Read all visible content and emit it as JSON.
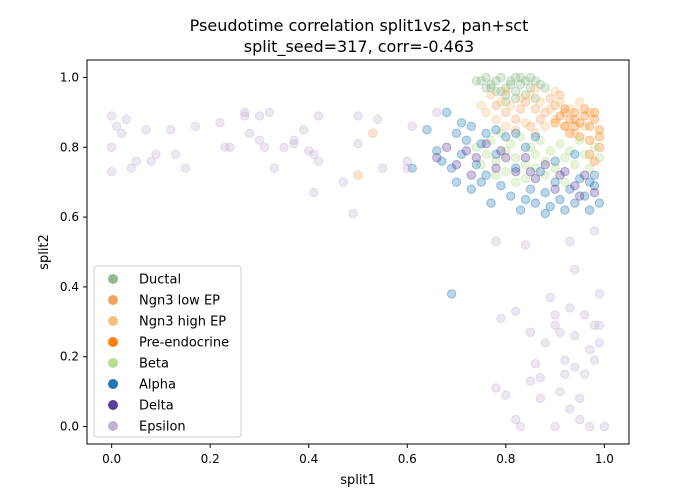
{
  "chart_data": {
    "type": "scatter",
    "title": "Pseudotime correlation split1vs2, pan+sct",
    "subtitle": "split_seed=317, corr=-0.463",
    "xlabel": "split1",
    "ylabel": "split2",
    "xlim": [
      -0.05,
      1.05
    ],
    "ylim": [
      -0.05,
      1.05
    ],
    "xticks": [
      0.0,
      0.2,
      0.4,
      0.6,
      0.8,
      1.0
    ],
    "yticks": [
      0.0,
      0.2,
      0.4,
      0.6,
      0.8,
      1.0
    ],
    "xtick_labels": [
      "0.0",
      "0.2",
      "0.4",
      "0.6",
      "0.8",
      "1.0"
    ],
    "ytick_labels": [
      "0.0",
      "0.2",
      "0.4",
      "0.6",
      "0.8",
      "1.0"
    ],
    "legend_position": "lower-left",
    "marker_alpha": 0.3,
    "series": [
      {
        "name": "Ductal",
        "color": "#8fbc8f",
        "points": [
          [
            0.75,
            0.99
          ],
          [
            0.76,
            1.0
          ],
          [
            0.77,
            0.98
          ],
          [
            0.78,
            0.99
          ],
          [
            0.79,
            1.0
          ],
          [
            0.8,
            0.97
          ],
          [
            0.81,
            0.99
          ],
          [
            0.82,
            1.0
          ],
          [
            0.83,
            0.98
          ],
          [
            0.84,
            0.99
          ],
          [
            0.85,
            0.97
          ],
          [
            0.86,
            0.99
          ],
          [
            0.87,
            0.98
          ],
          [
            0.78,
            0.96
          ],
          [
            0.8,
            0.95
          ],
          [
            0.82,
            0.96
          ],
          [
            0.84,
            0.95
          ],
          [
            0.77,
            0.97
          ],
          [
            0.79,
            0.96
          ],
          [
            0.81,
            0.98
          ],
          [
            0.83,
            1.0
          ],
          [
            0.85,
            1.0
          ],
          [
            0.76,
            0.97
          ],
          [
            0.88,
            0.97
          ],
          [
            0.74,
            0.99
          ],
          [
            0.86,
            0.94
          ],
          [
            0.8,
            0.93
          ],
          [
            0.82,
            0.94
          ]
        ]
      },
      {
        "name": "Ngn3 low EP",
        "color": "#f4a261",
        "points": [
          [
            0.53,
            0.84
          ],
          [
            0.5,
            0.72
          ],
          [
            0.84,
            0.93
          ],
          [
            0.86,
            0.91
          ],
          [
            0.88,
            0.9
          ],
          [
            0.9,
            0.92
          ],
          [
            0.87,
            0.88
          ],
          [
            0.85,
            0.86
          ],
          [
            0.89,
            0.94
          ],
          [
            0.91,
            0.95
          ],
          [
            0.83,
            0.91
          ],
          [
            0.92,
            0.9
          ],
          [
            0.94,
            0.88
          ],
          [
            0.8,
            0.9
          ],
          [
            0.78,
            0.92
          ],
          [
            0.82,
            0.88
          ]
        ]
      },
      {
        "name": "Ngn3 high EP",
        "color": "#f7c07a",
        "points": [
          [
            0.77,
            0.95
          ],
          [
            0.79,
            0.93
          ],
          [
            0.81,
            0.92
          ],
          [
            0.83,
            0.94
          ],
          [
            0.85,
            0.95
          ],
          [
            0.87,
            0.93
          ],
          [
            0.89,
            0.91
          ],
          [
            0.91,
            0.93
          ],
          [
            0.93,
            0.91
          ],
          [
            0.76,
            0.9
          ],
          [
            0.78,
            0.88
          ],
          [
            0.8,
            0.86
          ],
          [
            0.82,
            0.85
          ],
          [
            0.84,
            0.87
          ],
          [
            0.86,
            0.84
          ],
          [
            0.88,
            0.86
          ],
          [
            0.9,
            0.88
          ],
          [
            0.92,
            0.86
          ],
          [
            0.94,
            0.84
          ],
          [
            0.96,
            0.86
          ],
          [
            0.75,
            0.92
          ],
          [
            0.97,
            0.9
          ],
          [
            0.95,
            0.93
          ],
          [
            0.8,
            0.96
          ],
          [
            0.86,
            0.97
          ],
          [
            0.9,
            0.96
          ]
        ]
      },
      {
        "name": "Pre-endocrine",
        "color": "#ff7f0e",
        "points": [
          [
            0.9,
            0.87
          ],
          [
            0.91,
            0.89
          ],
          [
            0.92,
            0.86
          ],
          [
            0.93,
            0.88
          ],
          [
            0.94,
            0.9
          ],
          [
            0.95,
            0.87
          ],
          [
            0.96,
            0.89
          ],
          [
            0.97,
            0.86
          ],
          [
            0.98,
            0.88
          ],
          [
            0.99,
            0.85
          ],
          [
            0.93,
            0.84
          ],
          [
            0.95,
            0.83
          ],
          [
            0.97,
            0.82
          ],
          [
            0.99,
            0.8
          ],
          [
            0.96,
            0.91
          ],
          [
            0.98,
            0.9
          ],
          [
            0.92,
            0.91
          ],
          [
            0.94,
            0.86
          ],
          [
            0.99,
            0.83
          ],
          [
            0.97,
            0.78
          ],
          [
            0.98,
            0.76
          ]
        ]
      },
      {
        "name": "Beta",
        "color": "#b2df8a",
        "points": [
          [
            0.74,
            0.8
          ],
          [
            0.76,
            0.78
          ],
          [
            0.78,
            0.76
          ],
          [
            0.8,
            0.79
          ],
          [
            0.82,
            0.77
          ],
          [
            0.84,
            0.75
          ],
          [
            0.86,
            0.78
          ],
          [
            0.88,
            0.76
          ],
          [
            0.9,
            0.74
          ],
          [
            0.92,
            0.77
          ],
          [
            0.94,
            0.75
          ],
          [
            0.96,
            0.78
          ],
          [
            0.98,
            0.8
          ],
          [
            0.77,
            0.82
          ],
          [
            0.79,
            0.84
          ],
          [
            0.81,
            0.81
          ],
          [
            0.83,
            0.83
          ],
          [
            0.85,
            0.8
          ],
          [
            0.87,
            0.82
          ],
          [
            0.89,
            0.79
          ],
          [
            0.91,
            0.81
          ],
          [
            0.93,
            0.79
          ],
          [
            0.95,
            0.82
          ],
          [
            0.97,
            0.74
          ],
          [
            0.8,
            0.73
          ],
          [
            0.84,
            0.71
          ],
          [
            0.88,
            0.72
          ],
          [
            0.92,
            0.7
          ],
          [
            0.75,
            0.75
          ],
          [
            0.86,
            0.74
          ],
          [
            0.99,
            0.77
          ],
          [
            0.78,
            0.72
          ],
          [
            0.82,
            0.7
          ]
        ]
      },
      {
        "name": "Alpha",
        "color": "#1f77b4",
        "points": [
          [
            0.64,
            0.85
          ],
          [
            0.66,
            0.79
          ],
          [
            0.67,
            0.76
          ],
          [
            0.68,
            0.9
          ],
          [
            0.69,
            0.74
          ],
          [
            0.69,
            0.38
          ],
          [
            0.7,
            0.84
          ],
          [
            0.7,
            0.7
          ],
          [
            0.71,
            0.78
          ],
          [
            0.72,
            0.82
          ],
          [
            0.73,
            0.68
          ],
          [
            0.74,
            0.75
          ],
          [
            0.75,
            0.81
          ],
          [
            0.76,
            0.72
          ],
          [
            0.77,
            0.64
          ],
          [
            0.78,
            0.78
          ],
          [
            0.79,
            0.69
          ],
          [
            0.8,
            0.83
          ],
          [
            0.81,
            0.66
          ],
          [
            0.82,
            0.74
          ],
          [
            0.83,
            0.62
          ],
          [
            0.84,
            0.8
          ],
          [
            0.85,
            0.68
          ],
          [
            0.86,
            0.64
          ],
          [
            0.87,
            0.73
          ],
          [
            0.88,
            0.67
          ],
          [
            0.89,
            0.63
          ],
          [
            0.9,
            0.7
          ],
          [
            0.91,
            0.65
          ],
          [
            0.92,
            0.62
          ],
          [
            0.93,
            0.68
          ],
          [
            0.94,
            0.64
          ],
          [
            0.95,
            0.71
          ],
          [
            0.96,
            0.66
          ],
          [
            0.97,
            0.62
          ],
          [
            0.98,
            0.69
          ],
          [
            0.99,
            0.64
          ],
          [
            0.61,
            0.74
          ],
          [
            0.73,
            0.86
          ],
          [
            0.78,
            0.85
          ],
          [
            0.82,
            0.84
          ],
          [
            0.86,
            0.83
          ],
          [
            0.9,
            0.76
          ],
          [
            0.94,
            0.78
          ],
          [
            0.98,
            0.72
          ],
          [
            0.71,
            0.87
          ],
          [
            0.76,
            0.84
          ],
          [
            0.84,
            0.65
          ],
          [
            0.88,
            0.61
          ],
          [
            0.75,
            0.7
          ],
          [
            0.97,
            0.7
          ]
        ]
      },
      {
        "name": "Delta",
        "color": "#5c3d99",
        "points": [
          [
            0.66,
            0.77
          ],
          [
            0.68,
            0.8
          ],
          [
            0.7,
            0.75
          ],
          [
            0.72,
            0.79
          ],
          [
            0.74,
            0.77
          ],
          [
            0.76,
            0.81
          ],
          [
            0.78,
            0.74
          ],
          [
            0.8,
            0.77
          ],
          [
            0.82,
            0.73
          ],
          [
            0.84,
            0.77
          ],
          [
            0.86,
            0.71
          ],
          [
            0.88,
            0.75
          ],
          [
            0.9,
            0.68
          ],
          [
            0.92,
            0.73
          ],
          [
            0.94,
            0.69
          ],
          [
            0.96,
            0.72
          ],
          [
            0.98,
            0.67
          ],
          [
            0.73,
            0.72
          ],
          [
            0.79,
            0.79
          ],
          [
            0.85,
            0.73
          ],
          [
            0.91,
            0.72
          ],
          [
            0.95,
            0.66
          ]
        ]
      },
      {
        "name": "Epsilon",
        "color": "#c5b0d5",
        "points": [
          [
            0.0,
            0.89
          ],
          [
            0.0,
            0.8
          ],
          [
            0.0,
            0.73
          ],
          [
            0.01,
            0.86
          ],
          [
            0.02,
            0.84
          ],
          [
            0.03,
            0.88
          ],
          [
            0.04,
            0.74
          ],
          [
            0.05,
            0.76
          ],
          [
            0.07,
            0.85
          ],
          [
            0.08,
            0.76
          ],
          [
            0.09,
            0.78
          ],
          [
            0.12,
            0.85
          ],
          [
            0.13,
            0.78
          ],
          [
            0.15,
            0.74
          ],
          [
            0.17,
            0.86
          ],
          [
            0.22,
            0.87
          ],
          [
            0.23,
            0.8
          ],
          [
            0.24,
            0.8
          ],
          [
            0.27,
            0.9
          ],
          [
            0.27,
            0.89
          ],
          [
            0.28,
            0.84
          ],
          [
            0.3,
            0.89
          ],
          [
            0.3,
            0.82
          ],
          [
            0.31,
            0.8
          ],
          [
            0.32,
            0.9
          ],
          [
            0.33,
            0.74
          ],
          [
            0.35,
            0.8
          ],
          [
            0.37,
            0.82
          ],
          [
            0.37,
            0.81
          ],
          [
            0.39,
            0.85
          ],
          [
            0.4,
            0.79
          ],
          [
            0.41,
            0.78
          ],
          [
            0.42,
            0.76
          ],
          [
            0.41,
            0.67
          ],
          [
            0.42,
            0.89
          ],
          [
            0.47,
            0.7
          ],
          [
            0.49,
            0.61
          ],
          [
            0.5,
            0.81
          ],
          [
            0.5,
            0.89
          ],
          [
            0.54,
            0.88
          ],
          [
            0.55,
            0.74
          ],
          [
            0.6,
            0.76
          ],
          [
            0.6,
            0.74
          ],
          [
            0.61,
            0.86
          ],
          [
            0.66,
            0.9
          ],
          [
            0.78,
            0.53
          ],
          [
            0.78,
            0.11
          ],
          [
            0.79,
            0.31
          ],
          [
            0.8,
            0.09
          ],
          [
            0.82,
            0.02
          ],
          [
            0.83,
            0.0
          ],
          [
            0.84,
            0.52
          ],
          [
            0.85,
            0.27
          ],
          [
            0.86,
            0.18
          ],
          [
            0.87,
            0.08
          ],
          [
            0.87,
            0.14
          ],
          [
            0.88,
            0.24
          ],
          [
            0.89,
            0.37
          ],
          [
            0.9,
            0.32
          ],
          [
            0.9,
            0.29
          ],
          [
            0.91,
            0.27
          ],
          [
            0.91,
            0.1
          ],
          [
            0.92,
            0.19
          ],
          [
            0.92,
            0.15
          ],
          [
            0.93,
            0.05
          ],
          [
            0.93,
            0.34
          ],
          [
            0.93,
            0.53
          ],
          [
            0.94,
            0.45
          ],
          [
            0.94,
            0.17
          ],
          [
            0.95,
            0.08
          ],
          [
            0.95,
            0.02
          ],
          [
            0.96,
            0.32
          ],
          [
            0.96,
            0.15
          ],
          [
            0.97,
            0.22
          ],
          [
            0.98,
            0.19
          ],
          [
            0.98,
            0.29
          ],
          [
            0.98,
            0.56
          ],
          [
            0.99,
            0.38
          ],
          [
            0.99,
            0.29
          ],
          [
            0.99,
            0.24
          ],
          [
            0.97,
            0.0
          ],
          [
            1.0,
            0.0
          ],
          [
            0.9,
            0.0
          ],
          [
            0.94,
            0.26
          ],
          [
            0.82,
            0.33
          ],
          [
            0.85,
            0.13
          ]
        ]
      }
    ]
  }
}
